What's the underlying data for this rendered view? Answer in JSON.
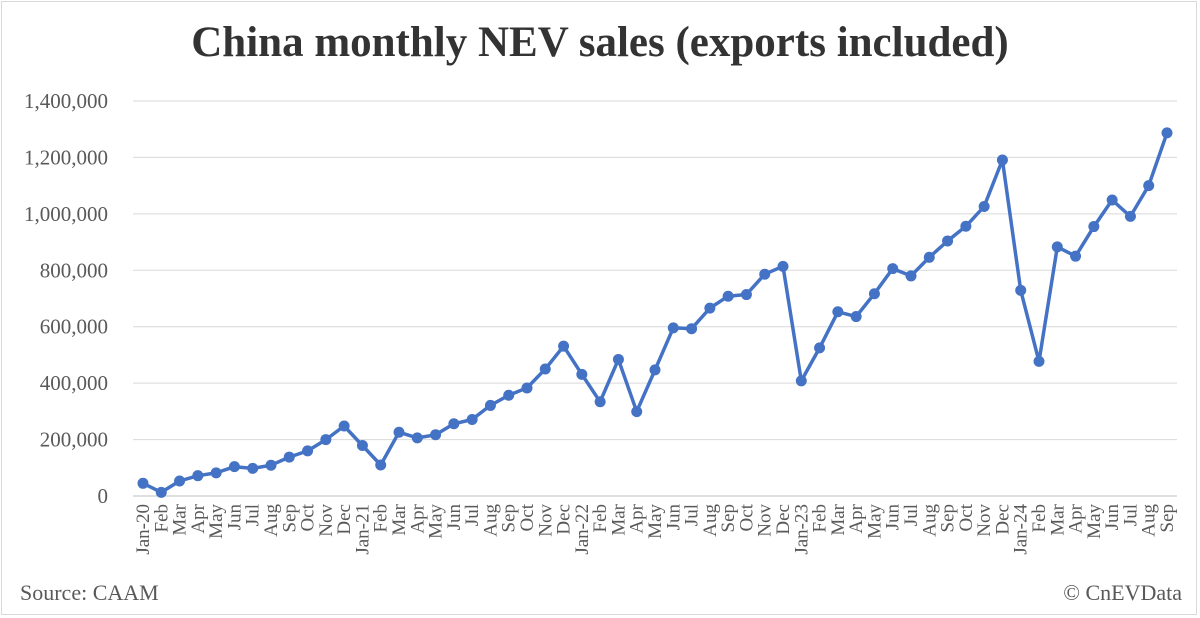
{
  "chart_data": {
    "type": "line",
    "title": "China monthly NEV sales (exports included)",
    "source": "Source: CAAM",
    "credit": "© CnEVData",
    "ylim": [
      0,
      1400000
    ],
    "y_ticks": [
      "0",
      "200,000",
      "400,000",
      "600,000",
      "800,000",
      "1,000,000",
      "1,200,000",
      "1,400,000"
    ],
    "grid": true,
    "legend": "none",
    "line_color": "#4472C4",
    "categories": [
      "Jan-20",
      "Feb",
      "Mar",
      "Apr",
      "May",
      "Jun",
      "Jul",
      "Aug",
      "Sep",
      "Oct",
      "Nov",
      "Dec",
      "Jan-21",
      "Feb",
      "Mar",
      "Apr",
      "May",
      "Jun",
      "Jul",
      "Aug",
      "Sep",
      "Oct",
      "Nov",
      "Dec",
      "Jan-22",
      "Feb",
      "Mar",
      "Apr",
      "May",
      "Jun",
      "Jul",
      "Aug",
      "Sep",
      "Oct",
      "Nov",
      "Dec",
      "Jan-23",
      "Feb",
      "Mar",
      "Apr",
      "May",
      "Jun",
      "Jul",
      "Aug",
      "Sep",
      "Oct",
      "Nov",
      "Dec",
      "Jan-24",
      "Feb",
      "Mar",
      "Apr",
      "May",
      "Jun",
      "Jul",
      "Aug",
      "Sep"
    ],
    "values": [
      45000,
      13000,
      53000,
      72000,
      82000,
      104000,
      98000,
      109000,
      138000,
      160000,
      200000,
      248000,
      179000,
      110000,
      226000,
      206000,
      217000,
      256000,
      271000,
      321000,
      357000,
      383000,
      450000,
      531000,
      431000,
      334000,
      484000,
      299000,
      447000,
      596000,
      593000,
      666000,
      708000,
      714000,
      786000,
      814000,
      408000,
      525000,
      653000,
      636000,
      717000,
      806000,
      780000,
      846000,
      904000,
      956000,
      1026000,
      1191000,
      729000,
      477000,
      883000,
      850000,
      955000,
      1049000,
      991000,
      1100000,
      1287000
    ]
  }
}
